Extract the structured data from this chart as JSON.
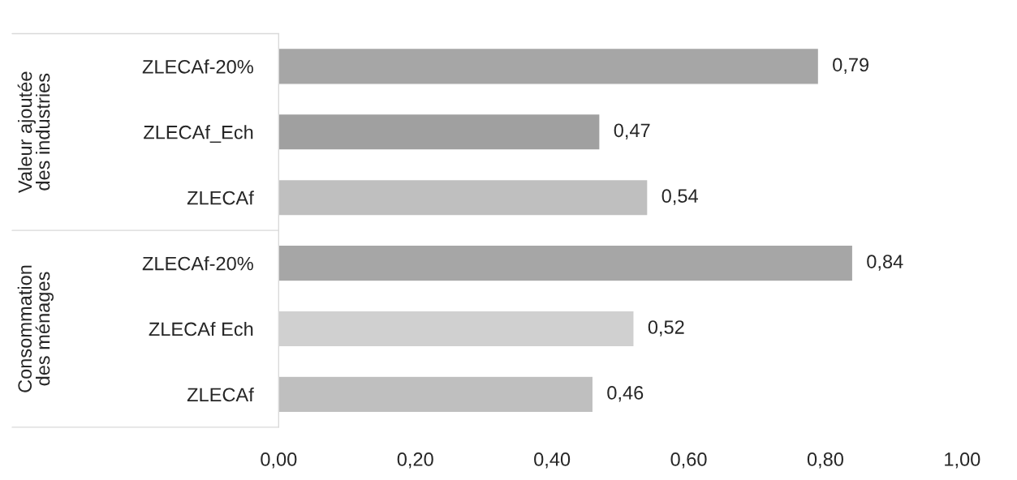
{
  "chart_data": {
    "type": "bar",
    "orientation": "horizontal",
    "categories": [
      "ZLECAf-20%",
      "ZLECAf_Ech",
      "ZLECAf",
      "ZLECAf-20%",
      "ZLECAf Ech",
      "ZLECAf"
    ],
    "values": [
      0.79,
      0.47,
      0.54,
      0.84,
      0.52,
      0.46
    ],
    "value_labels": [
      "0,79",
      "0,47",
      "0,54",
      "0,84",
      "0,52",
      "0,46"
    ],
    "colors": [
      "#a6a6a6",
      "#a0a0a0",
      "#bfbfbf",
      "#a6a6a6",
      "#d0d0d0",
      "#bfbfbf"
    ],
    "xlim": [
      0,
      1.0
    ],
    "xticks": [
      {
        "value": 0,
        "label": "0,00"
      },
      {
        "value": 0.2,
        "label": "0,20"
      },
      {
        "value": 0.4,
        "label": "0,40"
      },
      {
        "value": 0.6,
        "label": "0,60"
      },
      {
        "value": 0.8,
        "label": "0,80"
      },
      {
        "value": 1.0,
        "label": "1,00"
      }
    ],
    "annotations": [
      "Valeur ajoutée\ndes industries",
      "Consommation\ndes ménages"
    ],
    "grid": false,
    "legend": false
  }
}
